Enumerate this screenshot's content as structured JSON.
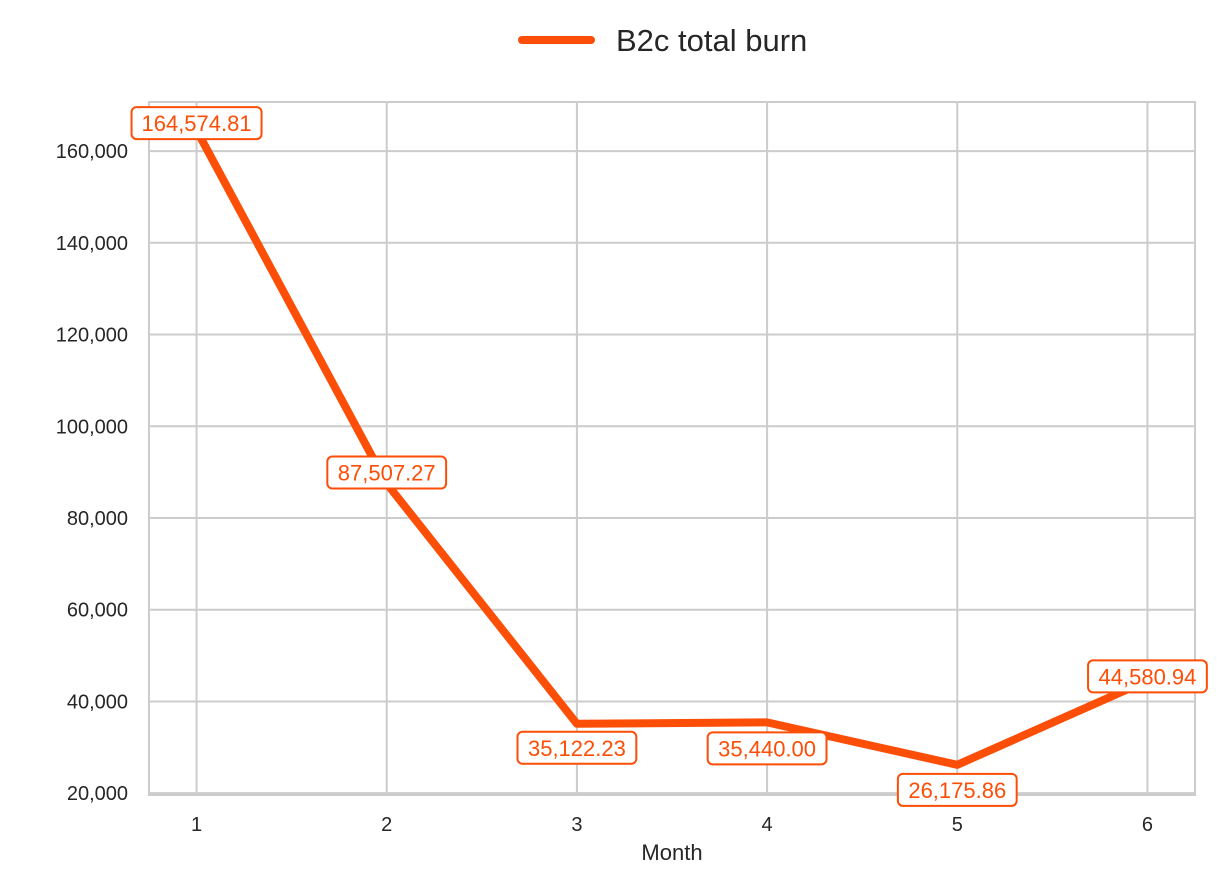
{
  "chart_data": {
    "type": "line",
    "x": [
      1,
      2,
      3,
      4,
      5,
      6
    ],
    "series": [
      {
        "name": "B2c total burn",
        "values": [
          164574.81,
          87507.27,
          35122.23,
          35440.0,
          26175.86,
          44580.94
        ],
        "labels": [
          "164,574.81",
          "87,507.27",
          "35,122.23",
          "35,440.00",
          "26,175.86",
          "44,580.94"
        ]
      }
    ],
    "xlabel": "Month",
    "ylabel": "",
    "xlim": [
      0.75,
      6.25
    ],
    "ylim": [
      19600,
      170700
    ],
    "xticks": [
      "1",
      "2",
      "3",
      "4",
      "5",
      "6"
    ],
    "yticks": [
      20000,
      40000,
      60000,
      80000,
      100000,
      120000,
      140000,
      160000
    ],
    "ytick_labels": [
      "20,000",
      "40,000",
      "60,000",
      "80,000",
      "100,000",
      "120,000",
      "140,000",
      "160,000"
    ],
    "grid": true,
    "legend": "top-center",
    "color": "#fc4e07"
  }
}
